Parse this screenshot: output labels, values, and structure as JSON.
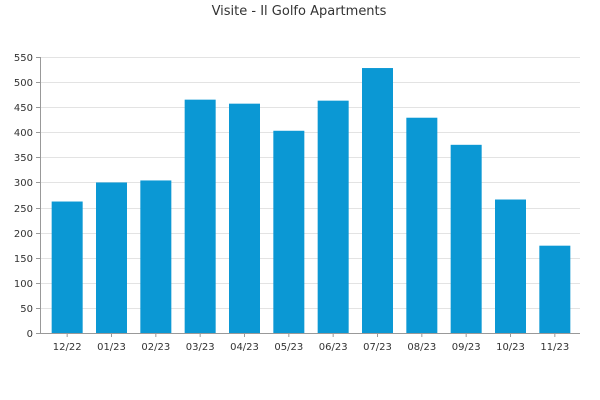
{
  "chart_data": {
    "type": "bar",
    "title": "Visite - Il Golfo Apartments",
    "xlabel": "",
    "ylabel": "",
    "categories": [
      "12/22",
      "01/23",
      "02/23",
      "03/23",
      "04/23",
      "05/23",
      "06/23",
      "07/23",
      "08/23",
      "09/23",
      "10/23",
      "11/23"
    ],
    "values": [
      262,
      300,
      304,
      465,
      457,
      403,
      463,
      528,
      429,
      375,
      266,
      174
    ],
    "ylim": [
      0,
      550
    ],
    "yticks": [
      0,
      50,
      100,
      150,
      200,
      250,
      300,
      350,
      400,
      450,
      500,
      550
    ],
    "grid": true,
    "legend": "none",
    "bar_color": "#0b98d4"
  }
}
